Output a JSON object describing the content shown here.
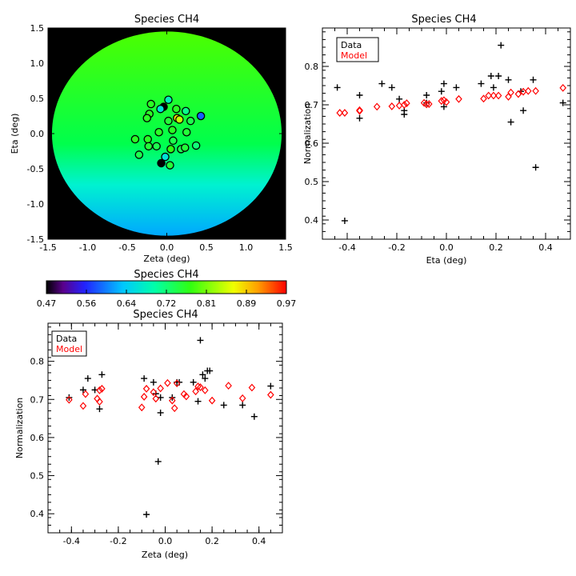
{
  "colors": {
    "data": "#000000",
    "model": "#ff0000",
    "frame": "#000000"
  },
  "chart_data": [
    {
      "id": "map",
      "type": "heatmap",
      "title": "Species CH4",
      "xlabel": "Zeta (deg)",
      "ylabel": "Eta (deg)",
      "xlim": [
        -1.5,
        1.5
      ],
      "ylim": [
        -1.5,
        1.5
      ],
      "xticks": [
        -1.5,
        -1.0,
        -0.5,
        0.0,
        0.5,
        1.0,
        1.5
      ],
      "yticks": [
        -1.5,
        -1.0,
        -0.5,
        0.0,
        0.5,
        1.0,
        1.5
      ],
      "xtick_labels": [
        "-1.5",
        "-1.0",
        "-0.5",
        "0.0",
        "0.5",
        "1.0",
        "1.5"
      ],
      "ytick_labels": [
        "-1.5",
        "-1.0",
        "-0.5",
        "0.0",
        "0.5",
        "1.0",
        "1.5"
      ],
      "disk_radius": 1.45,
      "field": {
        "type": "linear",
        "value_at": [
          {
            "eta": 1.45,
            "value": 0.76
          },
          {
            "eta": 0.0,
            "value": 0.735
          },
          {
            "eta": -1.45,
            "value": 0.62
          }
        ]
      },
      "points": [
        {
          "zeta": -0.2,
          "eta": 0.42,
          "value": 0.76
        },
        {
          "zeta": 0.02,
          "eta": 0.48,
          "value": 0.68
        },
        {
          "zeta": -0.04,
          "eta": 0.38,
          "value": 0.47
        },
        {
          "zeta": -0.08,
          "eta": 0.35,
          "value": 0.66
        },
        {
          "zeta": 0.12,
          "eta": 0.35,
          "value": 0.76
        },
        {
          "zeta": 0.24,
          "eta": 0.32,
          "value": 0.71
        },
        {
          "zeta": 0.43,
          "eta": 0.25,
          "value": 0.58
        },
        {
          "zeta": -0.22,
          "eta": 0.28,
          "value": 0.76
        },
        {
          "zeta": -0.25,
          "eta": 0.22,
          "value": 0.76
        },
        {
          "zeta": 0.13,
          "eta": 0.22,
          "value": 0.88
        },
        {
          "zeta": 0.16,
          "eta": 0.2,
          "value": 0.84
        },
        {
          "zeta": 0.3,
          "eta": 0.18,
          "value": 0.74
        },
        {
          "zeta": 0.02,
          "eta": 0.18,
          "value": 0.75
        },
        {
          "zeta": 0.07,
          "eta": 0.05,
          "value": 0.76
        },
        {
          "zeta": -0.1,
          "eta": 0.02,
          "value": 0.76
        },
        {
          "zeta": 0.25,
          "eta": 0.02,
          "value": 0.75
        },
        {
          "zeta": -0.4,
          "eta": -0.08,
          "value": 0.76
        },
        {
          "zeta": -0.24,
          "eta": -0.08,
          "value": 0.76
        },
        {
          "zeta": 0.08,
          "eta": -0.1,
          "value": 0.74
        },
        {
          "zeta": -0.23,
          "eta": -0.18,
          "value": 0.75
        },
        {
          "zeta": -0.13,
          "eta": -0.18,
          "value": 0.74
        },
        {
          "zeta": 0.37,
          "eta": -0.17,
          "value": 0.72
        },
        {
          "zeta": 0.05,
          "eta": -0.22,
          "value": 0.77
        },
        {
          "zeta": 0.18,
          "eta": -0.22,
          "value": 0.74
        },
        {
          "zeta": 0.23,
          "eta": -0.2,
          "value": 0.75
        },
        {
          "zeta": -0.35,
          "eta": -0.3,
          "value": 0.74
        },
        {
          "zeta": -0.02,
          "eta": -0.33,
          "value": 0.66
        },
        {
          "zeta": 0.04,
          "eta": -0.45,
          "value": 0.75
        },
        {
          "zeta": -0.07,
          "eta": -0.42,
          "value": 0.47
        }
      ]
    },
    {
      "id": "colorbar",
      "type": "colorbar",
      "title": "Species CH4",
      "range": [
        0.47,
        0.97
      ],
      "tick_labels": [
        "0.47",
        "0.56",
        "0.64",
        "0.72",
        "0.81",
        "0.89",
        "0.97"
      ]
    },
    {
      "id": "eta",
      "type": "scatter",
      "title": "Species CH4",
      "xlabel": "Eta (deg)",
      "ylabel": "Normalization",
      "xlim": [
        -0.5,
        0.5
      ],
      "ylim": [
        0.35,
        0.9
      ],
      "xticks": [
        -0.4,
        -0.2,
        0.0,
        0.2,
        0.4
      ],
      "xtick_labels": [
        "-0.4",
        "-0.2",
        "0.0",
        "0.2",
        "0.4"
      ],
      "yticks": [
        0.4,
        0.5,
        0.6,
        0.7,
        0.8
      ],
      "ytick_labels": [
        "0.4",
        "0.5",
        "0.6",
        "0.7",
        "0.8"
      ],
      "legend": [
        "Data",
        "Model"
      ],
      "legend_position": "top-left",
      "series": [
        {
          "name": "Data",
          "marker": "plus",
          "x": [
            -0.44,
            -0.41,
            -0.35,
            -0.35,
            -0.26,
            -0.22,
            -0.19,
            -0.17,
            -0.17,
            -0.08,
            -0.08,
            -0.02,
            -0.01,
            -0.01,
            0.04,
            0.14,
            0.18,
            0.19,
            0.21,
            0.22,
            0.25,
            0.26,
            0.3,
            0.31,
            0.35,
            0.36,
            0.47
          ],
          "y": [
            0.745,
            0.398,
            0.665,
            0.725,
            0.755,
            0.745,
            0.715,
            0.675,
            0.685,
            0.705,
            0.725,
            0.735,
            0.755,
            0.695,
            0.745,
            0.755,
            0.775,
            0.745,
            0.775,
            0.855,
            0.765,
            0.655,
            0.735,
            0.685,
            0.765,
            0.537,
            0.705
          ]
        },
        {
          "name": "Model",
          "marker": "diamond",
          "x": [
            -0.43,
            -0.41,
            -0.35,
            -0.35,
            -0.28,
            -0.22,
            -0.19,
            -0.17,
            -0.16,
            -0.09,
            -0.08,
            -0.07,
            -0.02,
            -0.01,
            0.0,
            0.05,
            0.15,
            0.17,
            0.19,
            0.21,
            0.25,
            0.26,
            0.29,
            0.31,
            0.33,
            0.36,
            0.47
          ],
          "y": [
            0.679,
            0.679,
            0.684,
            0.686,
            0.695,
            0.696,
            0.698,
            0.7,
            0.704,
            0.705,
            0.701,
            0.702,
            0.71,
            0.712,
            0.707,
            0.715,
            0.716,
            0.724,
            0.724,
            0.724,
            0.721,
            0.732,
            0.728,
            0.734,
            0.736,
            0.736,
            0.744
          ]
        }
      ]
    },
    {
      "id": "zeta",
      "type": "scatter",
      "title": "Species CH4",
      "xlabel": "Zeta (deg)",
      "ylabel": "Normalization",
      "xlim": [
        -0.5,
        0.5
      ],
      "ylim": [
        0.35,
        0.9
      ],
      "xticks": [
        -0.4,
        -0.2,
        0.0,
        0.2,
        0.4
      ],
      "xtick_labels": [
        "-0.4",
        "-0.2",
        "0.0",
        "0.2",
        "0.4"
      ],
      "yticks": [
        0.4,
        0.5,
        0.6,
        0.7,
        0.8
      ],
      "ytick_labels": [
        "0.4",
        "0.5",
        "0.6",
        "0.7",
        "0.8"
      ],
      "legend": [
        "Data",
        "Model"
      ],
      "legend_position": "top-left",
      "series": [
        {
          "name": "Data",
          "marker": "plus",
          "x": [
            -0.41,
            -0.35,
            -0.33,
            -0.3,
            -0.28,
            -0.27,
            -0.09,
            -0.08,
            -0.05,
            -0.04,
            -0.03,
            -0.02,
            -0.02,
            0.03,
            0.05,
            0.06,
            0.12,
            0.14,
            0.15,
            0.16,
            0.17,
            0.18,
            0.19,
            0.25,
            0.33,
            0.38,
            0.45
          ],
          "y": [
            0.705,
            0.725,
            0.755,
            0.725,
            0.675,
            0.765,
            0.755,
            0.398,
            0.745,
            0.715,
            0.537,
            0.705,
            0.665,
            0.705,
            0.745,
            0.745,
            0.745,
            0.695,
            0.855,
            0.765,
            0.755,
            0.775,
            0.775,
            0.685,
            0.685,
            0.655,
            0.735
          ]
        },
        {
          "name": "Model",
          "marker": "diamond",
          "x": [
            -0.41,
            -0.35,
            -0.34,
            -0.29,
            -0.28,
            -0.28,
            -0.27,
            -0.1,
            -0.09,
            -0.08,
            -0.05,
            -0.04,
            -0.02,
            0.01,
            0.03,
            0.04,
            0.05,
            0.08,
            0.09,
            0.13,
            0.14,
            0.15,
            0.17,
            0.2,
            0.27,
            0.33,
            0.37,
            0.45
          ],
          "y": [
            0.699,
            0.683,
            0.714,
            0.702,
            0.694,
            0.724,
            0.728,
            0.679,
            0.707,
            0.728,
            0.719,
            0.702,
            0.729,
            0.743,
            0.697,
            0.677,
            0.742,
            0.714,
            0.708,
            0.721,
            0.734,
            0.732,
            0.724,
            0.697,
            0.736,
            0.703,
            0.731,
            0.712
          ]
        }
      ]
    }
  ]
}
